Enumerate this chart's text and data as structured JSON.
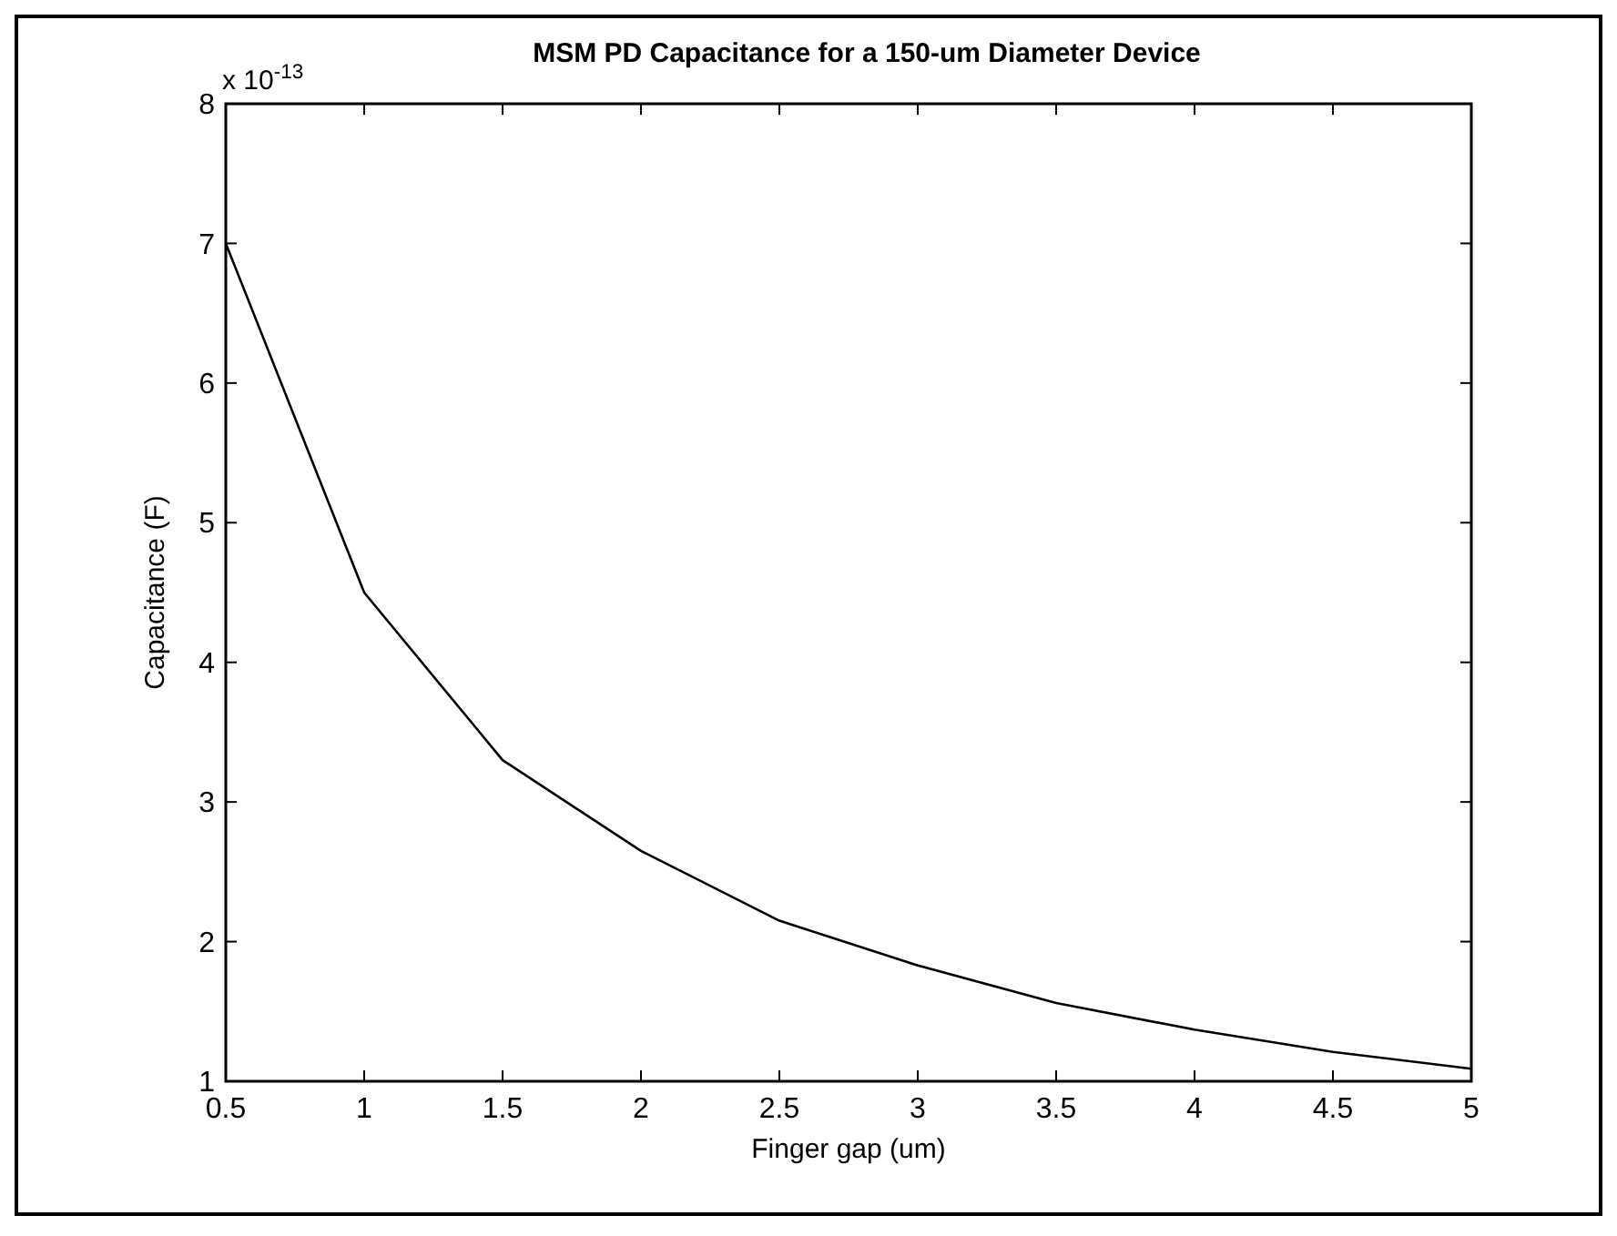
{
  "chart_data": {
    "type": "line",
    "title": "MSM PD Capacitance for a 150-um Diameter Device",
    "xlabel": "Finger gap (um)",
    "ylabel": "Capacitance (F)",
    "annotations": [
      "x 10$^{-13}$"
    ],
    "x": [
      0.5,
      1,
      1.5,
      2,
      2.5,
      3,
      3.5,
      4,
      4.5,
      5
    ],
    "series": [
      {
        "color": "#000000",
        "values": [
          7.0,
          4.5,
          3.3,
          2.65,
          2.15,
          1.83,
          1.56,
          1.37,
          1.21,
          1.09
        ]
      }
    ],
    "xlim": [
      0.5,
      5
    ],
    "xticks": [
      0.5,
      1,
      1.5,
      2,
      2.5,
      3,
      3.5,
      4,
      4.5,
      5
    ],
    "ylim": [
      1,
      8
    ],
    "yticks": [
      1,
      2,
      3,
      4,
      5,
      6,
      7,
      8
    ],
    "grid": false,
    "marker": "none",
    "line_style": "solid"
  }
}
